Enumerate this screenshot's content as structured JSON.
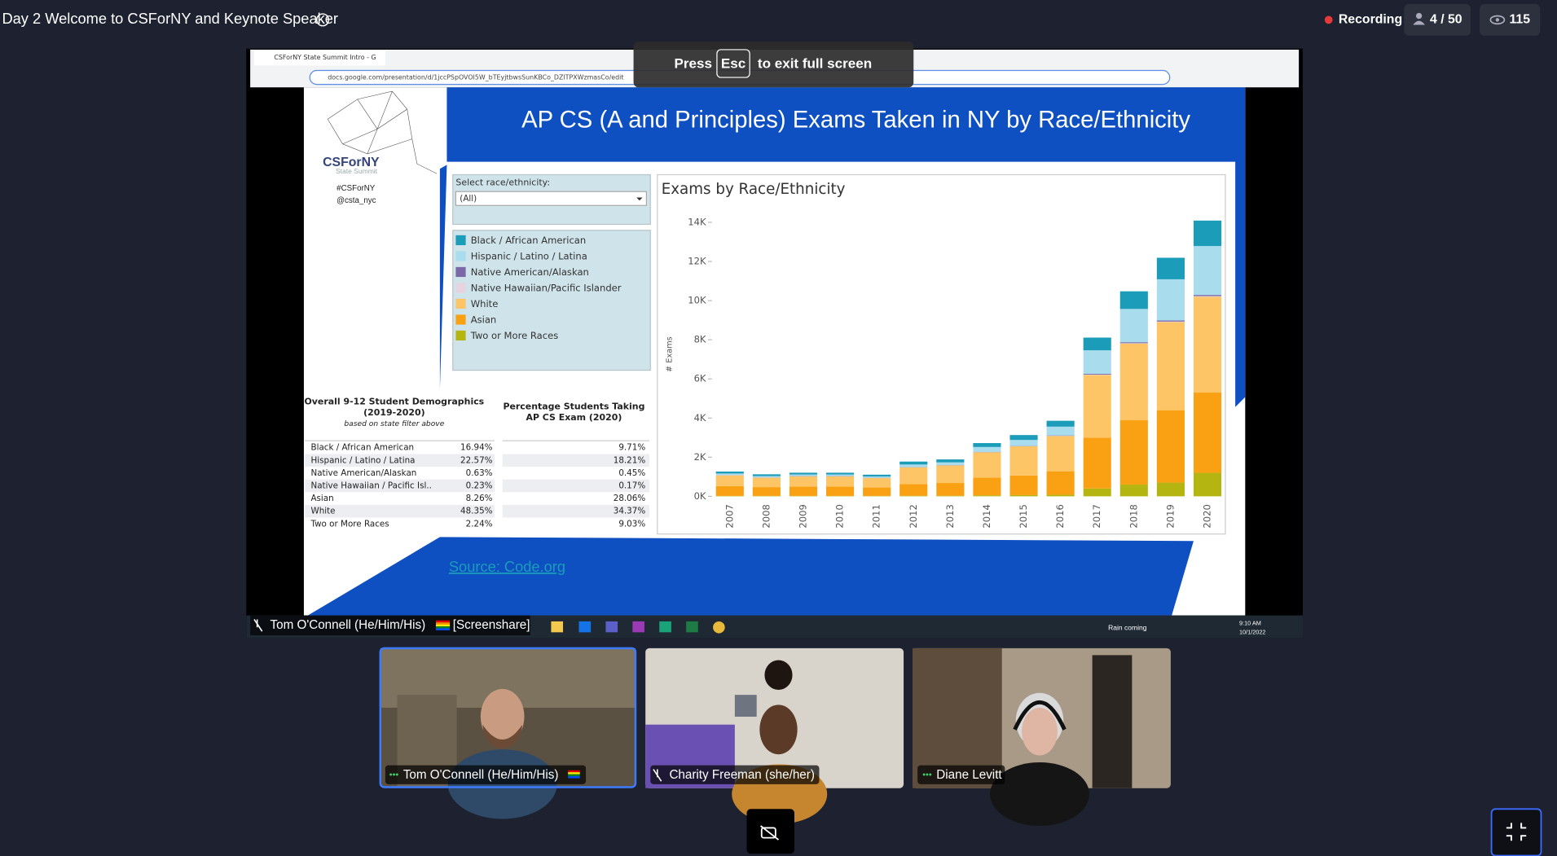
{
  "header": {
    "title": "Day 2 Welcome to CSForNY and Keynote Speaker",
    "recording": "Recording",
    "participants": "4 / 50",
    "viewers": "115"
  },
  "fullscreen_notice": {
    "before": "Press",
    "key": "Esc",
    "after": "to exit full screen"
  },
  "browser": {
    "tab": "CSForNY State Summit Intro - G",
    "url": "docs.google.com/presentation/d/1jccPSpOVOI5W_bTEyjtbwsSunKBCo_DZlTPXWzmasCo/edit"
  },
  "slide": {
    "title": "AP CS (A and Principles) Exams Taken in NY by Race/Ethnicity",
    "logo": "CSForNY",
    "logo_sub": "State Summit",
    "hashtag": "#CSForNY",
    "handle": "@csta_nyc",
    "filter_label": "Select race/ethnicity:",
    "filter_value": "(All)",
    "table": {
      "header_left": [
        "Overall 9-12 Student Demographics",
        "(2019-2020)"
      ],
      "subheader_left": "based on state filter above",
      "header_right": [
        "Percentage Students Taking",
        "AP CS Exam (2020)"
      ],
      "rows": [
        [
          "Black / African American",
          "16.94%",
          "9.71%"
        ],
        [
          "Hispanic / Latino / Latina",
          "22.57%",
          "18.21%"
        ],
        [
          "Native American/Alaskan",
          "0.63%",
          "0.45%"
        ],
        [
          "Native Hawaiian / Pacific Isl..",
          "0.23%",
          "0.17%"
        ],
        [
          "Asian",
          "8.26%",
          "28.06%"
        ],
        [
          "White",
          "48.35%",
          "34.37%"
        ],
        [
          "Two or More Races",
          "2.24%",
          "9.03%"
        ]
      ]
    },
    "source": "Source: Code.org"
  },
  "chart_data": {
    "type": "stacked_bar",
    "title": "Exams by Race/Ethnicity",
    "y_label": "# Exams",
    "categories": [
      "2007",
      "2008",
      "2009",
      "2010",
      "2011",
      "2012",
      "2013",
      "2014",
      "2015",
      "2016",
      "2017",
      "2018",
      "2019",
      "2020"
    ],
    "series": [
      {
        "name": "Black / African American",
        "color": "#1b9cb9",
        "values": [
          100,
          90,
          90,
          90,
          90,
          150,
          150,
          200,
          250,
          300,
          650,
          900,
          1100,
          1300
        ]
      },
      {
        "name": "Hispanic / Latino / Latina",
        "color": "#a9dcec",
        "values": [
          80,
          70,
          80,
          80,
          70,
          130,
          140,
          250,
          300,
          450,
          1200,
          1700,
          2100,
          2500
        ]
      },
      {
        "name": "Native American/Alaskan",
        "color": "#7b68a6",
        "values": [
          10,
          10,
          10,
          10,
          10,
          10,
          10,
          15,
          15,
          20,
          40,
          50,
          60,
          60
        ]
      },
      {
        "name": "Native Hawaiian/Pacific Islander",
        "color": "#e6d3df",
        "values": [
          5,
          5,
          5,
          5,
          5,
          5,
          5,
          5,
          5,
          10,
          20,
          25,
          30,
          30
        ]
      },
      {
        "name": "White",
        "color": "#fdc565",
        "values": [
          550,
          480,
          520,
          520,
          480,
          850,
          900,
          1300,
          1500,
          1800,
          3200,
          3900,
          4500,
          4900
        ]
      },
      {
        "name": "Asian",
        "color": "#f9a112",
        "values": [
          500,
          450,
          480,
          480,
          430,
          600,
          650,
          900,
          1000,
          1200,
          2600,
          3300,
          3700,
          4100
        ]
      },
      {
        "name": "Two or More Races",
        "color": "#b5b512",
        "values": [
          20,
          20,
          20,
          20,
          20,
          30,
          30,
          50,
          60,
          80,
          400,
          600,
          700,
          1200
        ]
      }
    ],
    "ylim": [
      0,
      14400
    ],
    "yticks": [
      {
        "value": 0,
        "label": "0K"
      },
      {
        "value": 2000,
        "label": "2K"
      },
      {
        "value": 4000,
        "label": "4K"
      },
      {
        "value": 6000,
        "label": "6K"
      },
      {
        "value": 8000,
        "label": "8K"
      },
      {
        "value": 10000,
        "label": "10K"
      },
      {
        "value": 12000,
        "label": "12K"
      },
      {
        "value": 14000,
        "label": "14K"
      }
    ]
  },
  "screenshare": {
    "name": "Tom O'Connell (He/Him/His)",
    "tag": "[Screenshare]"
  },
  "taskbar": {
    "weather": "Rain coming",
    "time": "9:10 AM",
    "date": "10/1/2022"
  },
  "participants": [
    {
      "name": "Tom O'Connell (He/Him/His)"
    },
    {
      "name": "Charity Freeman (she/her)"
    },
    {
      "name": "Diane Levitt"
    }
  ]
}
